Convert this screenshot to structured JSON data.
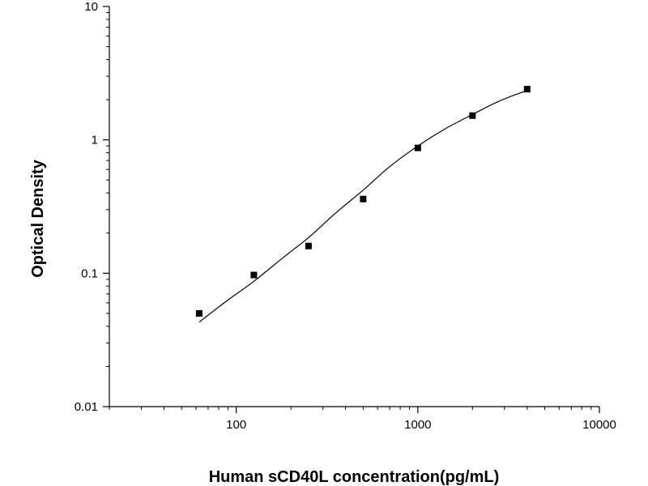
{
  "chart_data": {
    "type": "scatter",
    "title": "",
    "xlabel": "Human sCD40L concentration(pg/mL)",
    "ylabel": "Optical Density",
    "xscale": "log",
    "yscale": "log",
    "xlim": [
      20,
      10000
    ],
    "ylim": [
      0.01,
      10
    ],
    "x_ticks": [
      {
        "value": 100,
        "label": "100"
      },
      {
        "value": 1000,
        "label": "1000"
      },
      {
        "value": 10000,
        "label": "10000"
      }
    ],
    "y_ticks": [
      {
        "value": 0.01,
        "label": "0.01"
      },
      {
        "value": 0.1,
        "label": "0.1"
      },
      {
        "value": 1,
        "label": "1"
      },
      {
        "value": 10,
        "label": "10"
      }
    ],
    "grid": false,
    "series": [
      {
        "marker": "square",
        "color": "#000000",
        "points": [
          {
            "x": 62.5,
            "y": 0.05
          },
          {
            "x": 125,
            "y": 0.097
          },
          {
            "x": 250,
            "y": 0.16
          },
          {
            "x": 500,
            "y": 0.36
          },
          {
            "x": 1000,
            "y": 0.87
          },
          {
            "x": 2000,
            "y": 1.52
          },
          {
            "x": 4000,
            "y": 2.4
          }
        ]
      }
    ],
    "fit_curve": {
      "color": "#000000",
      "points": [
        {
          "x": 62.5,
          "y": 0.043
        },
        {
          "x": 90,
          "y": 0.063
        },
        {
          "x": 125,
          "y": 0.087
        },
        {
          "x": 180,
          "y": 0.13
        },
        {
          "x": 250,
          "y": 0.185
        },
        {
          "x": 350,
          "y": 0.28
        },
        {
          "x": 500,
          "y": 0.42
        },
        {
          "x": 700,
          "y": 0.63
        },
        {
          "x": 1000,
          "y": 0.9
        },
        {
          "x": 1400,
          "y": 1.2
        },
        {
          "x": 2000,
          "y": 1.55
        },
        {
          "x": 2800,
          "y": 1.95
        },
        {
          "x": 4000,
          "y": 2.35
        }
      ]
    }
  }
}
